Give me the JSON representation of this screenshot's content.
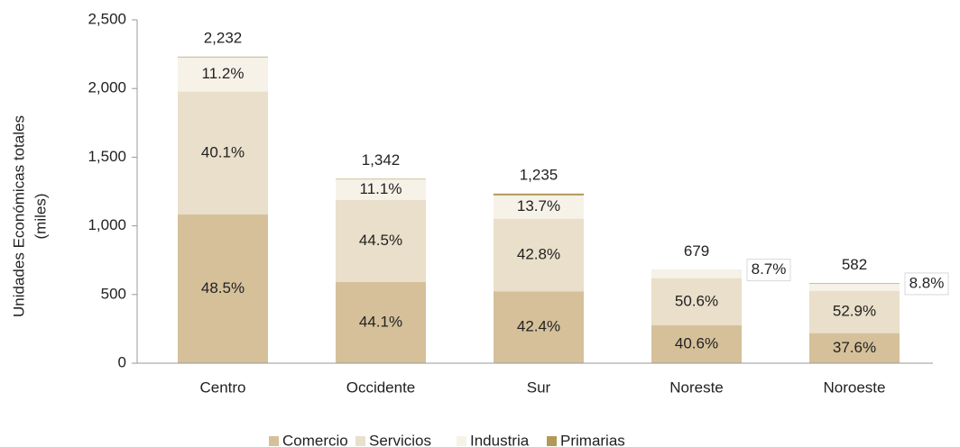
{
  "chart_data": {
    "type": "stacked_bar_percent",
    "ylabel": [
      "Unidades Económicas totales",
      "(miles)"
    ],
    "categories": [
      "Centro",
      "Occidente",
      "Sur",
      "Noreste",
      "Noroeste"
    ],
    "totals": [
      2232,
      1342,
      1235,
      679,
      582
    ],
    "total_labels": [
      "2,232",
      "1,342",
      "1,235",
      "679",
      "582"
    ],
    "series": [
      {
        "name": "Comercio",
        "color": "#d5c09a",
        "values": [
          48.5,
          44.1,
          42.4,
          40.6,
          37.6
        ],
        "value_labels": [
          "48.5%",
          "44.1%",
          "42.4%",
          "40.6%",
          "37.6%"
        ]
      },
      {
        "name": "Servicios",
        "color": "#e9dfca",
        "values": [
          40.1,
          44.5,
          42.8,
          50.6,
          52.9
        ],
        "value_labels": [
          "40.1%",
          "44.5%",
          "42.8%",
          "50.6%",
          "52.9%"
        ]
      },
      {
        "name": "Industria",
        "color": "#f6f2e8",
        "values": [
          11.2,
          11.1,
          13.7,
          8.7,
          8.8
        ],
        "value_labels": [
          "11.2%",
          "11.1%",
          "13.7%",
          "8.7%",
          "8.8%"
        ]
      },
      {
        "name": "Primarias",
        "color": "#b39858",
        "values": [
          0.2,
          0.3,
          1.1,
          0.1,
          0.7
        ],
        "value_labels": [
          null,
          null,
          null,
          null,
          null
        ]
      }
    ],
    "ylim": [
      0,
      2500
    ],
    "yticks": [
      0,
      500,
      {
        "value": 1000,
        "label": "1,000"
      },
      {
        "value": 1500,
        "label": "1,500"
      },
      {
        "value": 2000,
        "label": "2,000"
      },
      {
        "value": 2500,
        "label": "2,500"
      }
    ],
    "grid": false,
    "legend": "bottom"
  }
}
